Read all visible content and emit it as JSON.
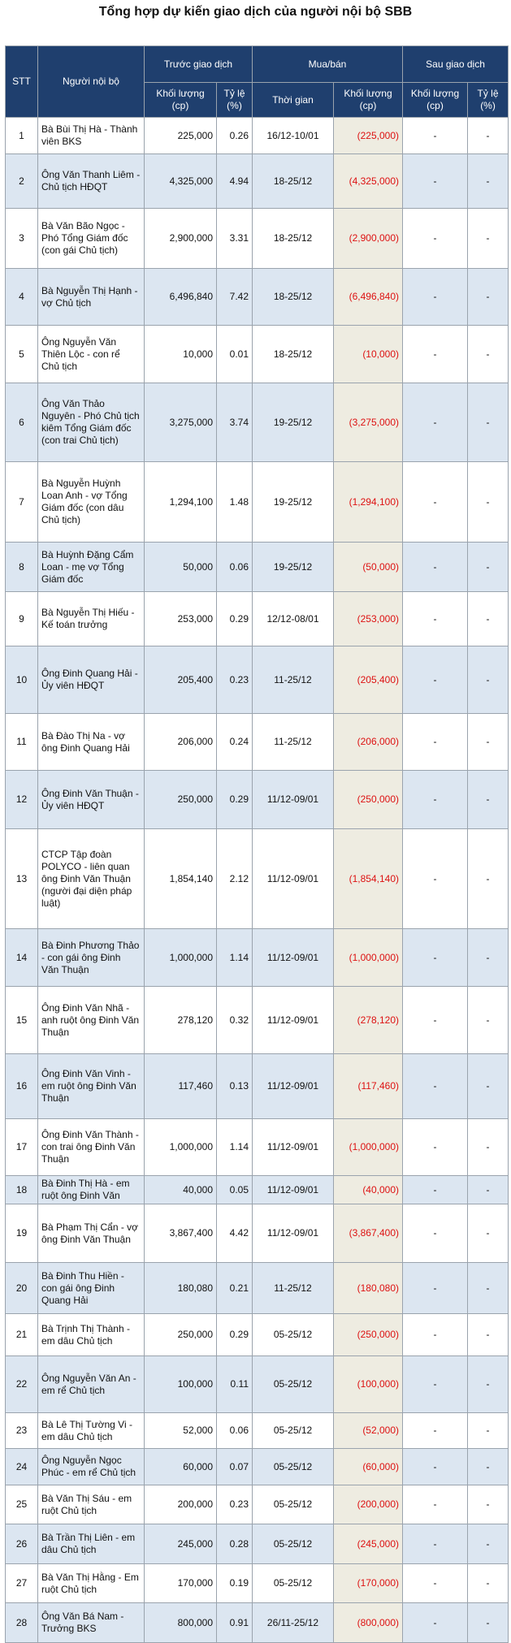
{
  "title": "Tổng hợp dự kiến giao dịch của người nội bộ SBB",
  "table": {
    "header": {
      "stt": "STT",
      "name": "Người nội bộ",
      "before": "Trước giao dịch",
      "trade": "Mua/bán",
      "after": "Sau giao dịch",
      "sub": [
        "Khối lượng (cp)",
        "Tỷ lệ (%)",
        "Thời gian",
        "Khối lượng (cp)",
        "Khối lượng (cp)",
        "Tỷ lệ (%)"
      ]
    },
    "rows": [
      [
        "1",
        "Bà Bùi Thị Hà - Thành viên BKS",
        "225,000",
        "0.26",
        "16/12-10/01",
        "(225,000)",
        "-",
        "-"
      ],
      [
        "2",
        "Ông Văn Thanh Liêm - Chủ tịch HĐQT",
        "4,325,000",
        "4.94",
        "18-25/12",
        "(4,325,000)",
        "-",
        "-"
      ],
      [
        "3",
        "Bà Văn Bão Ngọc - Phó Tổng Giám đốc (con gái Chủ tịch)",
        "2,900,000",
        "3.31",
        "18-25/12",
        "(2,900,000)",
        "-",
        "-"
      ],
      [
        "4",
        "Bà Nguyễn Thị Hạnh - vợ Chủ tịch",
        "6,496,840",
        "7.42",
        "18-25/12",
        "(6,496,840)",
        "-",
        "-"
      ],
      [
        "5",
        "Ông Nguyễn Văn Thiên Lộc - con rể Chủ tịch",
        "10,000",
        "0.01",
        "18-25/12",
        "(10,000)",
        "-",
        "-"
      ],
      [
        "6",
        "Ông Văn Thảo Nguyên - Phó Chủ tịch kiêm Tổng Giám đốc (con trai Chủ tịch)",
        "3,275,000",
        "3.74",
        "19-25/12",
        "(3,275,000)",
        "-",
        "-"
      ],
      [
        "7",
        "Bà Nguyễn Huỳnh Loan Anh - vợ Tổng Giám đốc (con dâu Chủ tịch)",
        "1,294,100",
        "1.48",
        "19-25/12",
        "(1,294,100)",
        "-",
        "-"
      ],
      [
        "8",
        "Bà Huỳnh Đặng Cẩm Loan - mẹ vợ Tổng Giám đốc",
        "50,000",
        "0.06",
        "19-25/12",
        "(50,000)",
        "-",
        "-"
      ],
      [
        "9",
        "Bà Nguyễn Thị Hiếu - Kế toán trưởng",
        "253,000",
        "0.29",
        "12/12-08/01",
        "(253,000)",
        "-",
        "-"
      ],
      [
        "10",
        "Ông Đinh Quang Hải - Ủy viên HĐQT",
        "205,400",
        "0.23",
        "11-25/12",
        "(205,400)",
        "-",
        "-"
      ],
      [
        "11",
        "Bà Đào Thị Na - vợ ông Đinh Quang Hải",
        "206,000",
        "0.24",
        "11-25/12",
        "(206,000)",
        "-",
        "-"
      ],
      [
        "12",
        "Ông Đinh Văn Thuận - Ủy viên HĐQT",
        "250,000",
        "0.29",
        "11/12-09/01",
        "(250,000)",
        "-",
        "-"
      ],
      [
        "13",
        "CTCP Tập đoàn POLYCO - liên quan ông Đinh Văn Thuận (người đại diện pháp luật)",
        "1,854,140",
        "2.12",
        "11/12-09/01",
        "(1,854,140)",
        "-",
        "-"
      ],
      [
        "14",
        "Bà Đinh Phương Thảo - con gái ông Đinh Văn Thuận",
        "1,000,000",
        "1.14",
        "11/12-09/01",
        "(1,000,000)",
        "-",
        "-"
      ],
      [
        "15",
        "Ông Đinh Văn Nhã - anh ruột ông Đinh Văn Thuận",
        "278,120",
        "0.32",
        "11/12-09/01",
        "(278,120)",
        "-",
        "-"
      ],
      [
        "16",
        "Ông Đinh Văn Vinh - em ruột ông Đinh Văn Thuận",
        "117,460",
        "0.13",
        "11/12-09/01",
        "(117,460)",
        "-",
        "-"
      ],
      [
        "17",
        "Ông Đinh Văn Thành - con trai ông Đinh Văn Thuận",
        "1,000,000",
        "1.14",
        "11/12-09/01",
        "(1,000,000)",
        "-",
        "-"
      ],
      [
        "18",
        "Bà Đinh Thị Hà - em ruột ông Đinh Văn",
        "40,000",
        "0.05",
        "11/12-09/01",
        "(40,000)",
        "-",
        "-"
      ],
      [
        "19",
        "Bà Phạm Thị Cẩn - vợ ông Đinh Văn Thuận",
        "3,867,400",
        "4.42",
        "11/12-09/01",
        "(3,867,400)",
        "-",
        "-"
      ],
      [
        "20",
        "Bà Đinh Thu Hiền - con gái ông Đinh Quang Hải",
        "180,080",
        "0.21",
        "11-25/12",
        "(180,080)",
        "-",
        "-"
      ],
      [
        "21",
        "Bà Trịnh Thị Thành - em dâu Chủ tịch",
        "250,000",
        "0.29",
        "05-25/12",
        "(250,000)",
        "-",
        "-"
      ],
      [
        "22",
        "Ông Nguyễn Văn An - em rể Chủ tịch",
        "100,000",
        "0.11",
        "05-25/12",
        "(100,000)",
        "-",
        "-"
      ],
      [
        "23",
        "Bà Lê Thị Tường Vi - em dâu Chủ tịch",
        "52,000",
        "0.06",
        "05-25/12",
        "(52,000)",
        "-",
        "-"
      ],
      [
        "24",
        "Ông Nguyễn Ngọc Phúc - em rể Chủ tịch",
        "60,000",
        "0.07",
        "05-25/12",
        "(60,000)",
        "-",
        "-"
      ],
      [
        "25",
        "Bà Văn Thị Sáu - em ruột Chủ tịch",
        "200,000",
        "0.23",
        "05-25/12",
        "(200,000)",
        "-",
        "-"
      ],
      [
        "26",
        "Bà Trần Thị Liên - em dâu Chủ tịch",
        "245,000",
        "0.28",
        "05-25/12",
        "(245,000)",
        "-",
        "-"
      ],
      [
        "27",
        "Bà Văn Thị Hằng - Em ruột Chủ tịch",
        "170,000",
        "0.19",
        "05-25/12",
        "(170,000)",
        "-",
        "-"
      ],
      [
        "28",
        "Ông Văn Bá Nam - Trưởng BKS",
        "800,000",
        "0.91",
        "26/11-25/12",
        "(800,000)",
        "-",
        "-"
      ]
    ]
  }
}
